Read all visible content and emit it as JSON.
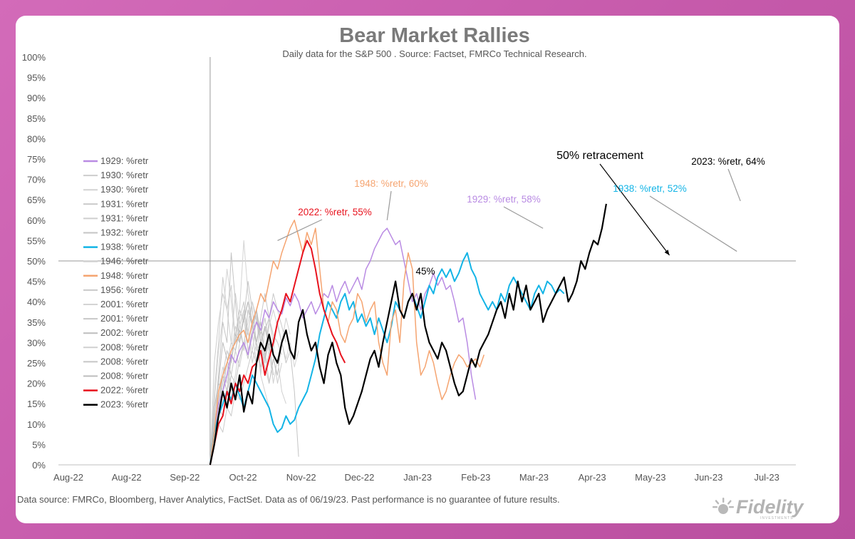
{
  "page": {
    "background": "#c865ae",
    "card_background": "#ffffff"
  },
  "chart_data": {
    "type": "line",
    "title": "Bear Market Rallies",
    "subtitle": "Daily data for the S&P 500 .  Source: Factset, FMRCo Technical Research.",
    "footer": "Data source: FMRCo, Bloomberg, Haver Analytics, FactSet. Data as of 06/19/23. Past performance is no guarantee of future results.",
    "logo_text": "Fidelity",
    "logo_subtext": "INVESTMENTS",
    "xlabel": "",
    "ylabel": "",
    "x_ticks": [
      "Aug-22",
      "Aug-22",
      "Sep-22",
      "Oct-22",
      "Nov-22",
      "Dec-22",
      "Jan-23",
      "Feb-23",
      "Mar-23",
      "Apr-23",
      "May-23",
      "Jun-23",
      "Jul-23"
    ],
    "y_ticks": [
      "0%",
      "5%",
      "10%",
      "15%",
      "20%",
      "25%",
      "30%",
      "35%",
      "40%",
      "45%",
      "50%",
      "55%",
      "60%",
      "65%",
      "70%",
      "75%",
      "80%",
      "85%",
      "90%",
      "95%",
      "100%"
    ],
    "x_range_days": [
      0,
      350
    ],
    "ylim": [
      0,
      100
    ],
    "start_day": 72,
    "reference_line": {
      "y": 50,
      "label": "50% retracement"
    },
    "legend_position": "left",
    "colors": {
      "purple": "#b98be3",
      "gray": "#c8c8c8",
      "blue": "#13b4e6",
      "orange": "#f5a470",
      "red": "#e8121d",
      "black": "#000000"
    },
    "series": [
      {
        "name": "1929: %retr",
        "color": "#b98be3",
        "width": 1.5,
        "values": [
          0,
          8,
          15,
          18,
          22,
          27,
          25,
          28,
          30,
          27,
          32,
          35,
          33,
          38,
          36,
          40,
          38,
          37,
          41,
          39,
          42,
          40,
          36,
          38,
          40,
          37,
          39,
          42,
          41,
          44,
          40,
          43,
          45,
          42,
          44,
          46,
          43,
          48,
          50,
          53,
          55,
          57,
          58,
          56,
          54,
          55,
          50,
          45,
          40,
          42,
          38,
          42,
          44,
          47,
          44,
          46,
          43,
          44,
          40,
          35,
          36,
          30,
          22,
          16
        ]
      },
      {
        "name": "1930: %retr",
        "color": "#cdcdcd",
        "width": 1,
        "values": [
          0,
          25,
          35,
          42,
          38,
          44,
          30,
          36,
          40,
          28,
          32,
          38,
          22,
          34,
          30,
          27,
          20,
          25
        ]
      },
      {
        "name": "1930: %retr",
        "color": "#d3d3d3",
        "width": 1,
        "values": [
          0,
          15,
          28,
          36,
          48,
          40,
          30,
          38,
          55,
          42,
          35,
          28,
          30,
          24,
          20,
          26,
          22
        ]
      },
      {
        "name": "1931: %retr",
        "color": "#c9c9c9",
        "width": 1,
        "values": [
          0,
          12,
          20,
          18,
          25,
          30,
          28,
          34,
          38,
          32,
          40,
          35,
          30,
          25,
          36,
          42,
          38,
          34,
          30
        ]
      },
      {
        "name": "1931: %retr",
        "color": "#cfcfcf",
        "width": 1,
        "values": [
          0,
          18,
          30,
          46,
          38,
          30,
          42,
          35,
          28,
          33,
          25,
          30,
          22,
          18,
          14
        ]
      },
      {
        "name": "1932: %retr",
        "color": "#c4c4c4",
        "width": 1,
        "values": [
          0,
          10,
          22,
          35,
          30,
          52,
          40,
          30,
          36,
          45,
          38,
          30,
          24,
          28,
          20,
          26,
          22,
          30,
          25,
          28,
          18,
          2
        ]
      },
      {
        "name": "1938: %retr",
        "color": "#13b4e6",
        "width": 2,
        "values": [
          0,
          8,
          12,
          15,
          18,
          16,
          20,
          17,
          14,
          18,
          22,
          20,
          18,
          16,
          14,
          10,
          8,
          9,
          12,
          10,
          11,
          14,
          16,
          18,
          22,
          26,
          32,
          36,
          40,
          38,
          36,
          40,
          42,
          38,
          40,
          35,
          37,
          34,
          36,
          32,
          36,
          33,
          30,
          34,
          40,
          38,
          36,
          40,
          42,
          39,
          36,
          40,
          44,
          42,
          46,
          48,
          46,
          48,
          45,
          47,
          50,
          52,
          48,
          46,
          42,
          40,
          38,
          40,
          38,
          42,
          40,
          44,
          46,
          44,
          42,
          40,
          38,
          42,
          44,
          42,
          45,
          44,
          42,
          43,
          42
        ]
      },
      {
        "name": "1946: %retr",
        "color": "#d0d0d0",
        "width": 1,
        "values": [
          0,
          5,
          12,
          20,
          25,
          18,
          22,
          30,
          36,
          28,
          32,
          25,
          30,
          22,
          28,
          20,
          26,
          18,
          15
        ]
      },
      {
        "name": "1948: %retr",
        "color": "#f5a470",
        "width": 1.5,
        "values": [
          0,
          8,
          18,
          22,
          25,
          28,
          30,
          32,
          33,
          30,
          35,
          38,
          42,
          40,
          45,
          50,
          48,
          52,
          55,
          58,
          60,
          56,
          52,
          57,
          54,
          58,
          48,
          38,
          35,
          40,
          38,
          32,
          30,
          34,
          36,
          42,
          40,
          35,
          38,
          40,
          30,
          25,
          22,
          35,
          38,
          30,
          45,
          52,
          48,
          30,
          22,
          24,
          28,
          25,
          20,
          16,
          18,
          22,
          25,
          27,
          26,
          24,
          25,
          26,
          24,
          27
        ]
      },
      {
        "name": "1956: %retr",
        "color": "#cacaca",
        "width": 1,
        "values": [
          0,
          5,
          10,
          8,
          14,
          12,
          18,
          16,
          20,
          24,
          28,
          25,
          30,
          33,
          36,
          32,
          30,
          27
        ]
      },
      {
        "name": "2001: %retr",
        "color": "#d4d4d4",
        "width": 1,
        "values": [
          0,
          12,
          18,
          24,
          20,
          28,
          34,
          30,
          38,
          33,
          28,
          36,
          30,
          25,
          32,
          28,
          35,
          30,
          26,
          30,
          24,
          28
        ]
      },
      {
        "name": "2001: %retr",
        "color": "#c7c7c7",
        "width": 1,
        "values": [
          0,
          10,
          16,
          22,
          28,
          25,
          32,
          38,
          35,
          40,
          34,
          30,
          36,
          42,
          36,
          30
        ]
      },
      {
        "name": "2002: %retr",
        "color": "#bdbdbd",
        "width": 1,
        "values": [
          0,
          14,
          20,
          30,
          26,
          22,
          28,
          33,
          29,
          38,
          34,
          30,
          35,
          26,
          30,
          22
        ]
      },
      {
        "name": "2008: %retr",
        "color": "#d0d0d0",
        "width": 1,
        "values": [
          0,
          6,
          12,
          18,
          15,
          22,
          28,
          24,
          30,
          35,
          40,
          36,
          32,
          28,
          34,
          38,
          34,
          30,
          36,
          32
        ]
      },
      {
        "name": "2008: %retr",
        "color": "#c6c6c6",
        "width": 1,
        "values": [
          0,
          10,
          14,
          12,
          18,
          22,
          20,
          26,
          30,
          26,
          34,
          38,
          32,
          36,
          30
        ]
      },
      {
        "name": "2008: %retr",
        "color": "#bcbcbc",
        "width": 1,
        "values": [
          0,
          6,
          14,
          22,
          18,
          26,
          32,
          30,
          36,
          40,
          34,
          38,
          30,
          34,
          28
        ]
      },
      {
        "name": "2022: %retr",
        "color": "#e8121d",
        "width": 2,
        "values": [
          0,
          5,
          10,
          12,
          18,
          15,
          20,
          18,
          22,
          20,
          24,
          25,
          28,
          22,
          26,
          30,
          35,
          38,
          42,
          40,
          44,
          48,
          52,
          55,
          53,
          48,
          42,
          38,
          35,
          32,
          30,
          27,
          25
        ]
      },
      {
        "name": "2023: %retr",
        "color": "#000000",
        "width": 2.2,
        "values": [
          0,
          5,
          12,
          18,
          14,
          20,
          16,
          22,
          13,
          18,
          15,
          25,
          30,
          28,
          32,
          27,
          25,
          30,
          33,
          28,
          26,
          35,
          38,
          32,
          28,
          30,
          24,
          20,
          27,
          30,
          25,
          22,
          14,
          10,
          12,
          15,
          18,
          22,
          26,
          28,
          24,
          30,
          35,
          40,
          45,
          38,
          36,
          40,
          42,
          38,
          42,
          34,
          30,
          28,
          26,
          30,
          28,
          24,
          20,
          17,
          18,
          22,
          26,
          24,
          28,
          30,
          32,
          35,
          38,
          40,
          36,
          42,
          38,
          45,
          40,
          44,
          38,
          40,
          42,
          35,
          38,
          40,
          42,
          44,
          46,
          40,
          42,
          45,
          50,
          48,
          52,
          55,
          54,
          58,
          64
        ]
      }
    ],
    "annotations": [
      {
        "text": "2022: %retr, 55%",
        "color": "#e8121d",
        "day": 104,
        "y": 55
      },
      {
        "text": "1948: %retr, 60%",
        "color": "#f5a470",
        "day": 156,
        "y": 60
      },
      {
        "text": "45%",
        "color": "#000000",
        "day": 176,
        "y": 45
      },
      {
        "text": "1929: %retr, 58%",
        "color": "#b98be3",
        "day": 230,
        "y": 58
      },
      {
        "text": "50% retracement",
        "color": "#000000",
        "day": 290,
        "y": 50
      },
      {
        "text": "1938: %retr, 52%",
        "color": "#13b4e6",
        "day": 322,
        "y": 52
      },
      {
        "text": "2023: %retr, 64%",
        "color": "#000000",
        "day": 323,
        "y": 64
      }
    ]
  }
}
